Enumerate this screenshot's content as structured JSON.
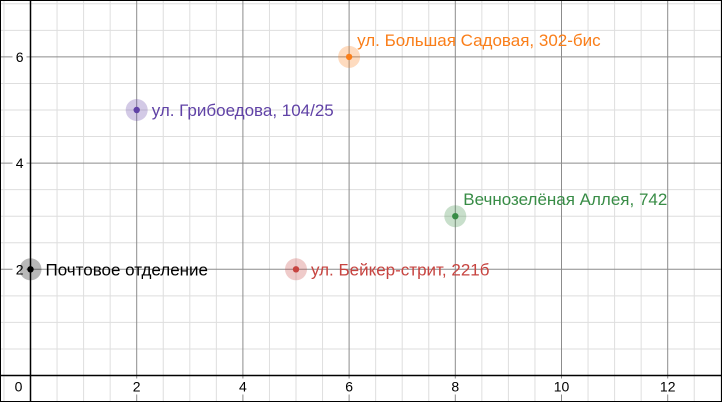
{
  "chart_data": {
    "type": "scatter",
    "title": "",
    "xlabel": "",
    "ylabel": "",
    "xlim": [
      0,
      13
    ],
    "ylim": [
      0,
      7
    ],
    "x_ticks": [
      0,
      2,
      4,
      6,
      8,
      10,
      12
    ],
    "y_ticks": [
      2,
      4,
      6
    ],
    "grid": true,
    "minor_grid_step": 0.5,
    "points": [
      {
        "name": "Почтовое отделение",
        "x": 0,
        "y": 2,
        "color": "#000000",
        "label_side": "right"
      },
      {
        "name": "ул. Грибоедова, 104/25",
        "x": 2,
        "y": 5,
        "color": "#6042a6",
        "label_side": "right"
      },
      {
        "name": "ул. Бейкер-стрит, 221б",
        "x": 5,
        "y": 2,
        "color": "#c74440",
        "label_side": "right"
      },
      {
        "name": "ул. Большая Садовая, 302-бис",
        "x": 6,
        "y": 6,
        "color": "#fa7e19",
        "label_side": "above-right"
      },
      {
        "name": "Вечнозелёная Аллея, 742",
        "x": 8,
        "y": 3,
        "color": "#388c46",
        "label_side": "above-right"
      }
    ]
  }
}
